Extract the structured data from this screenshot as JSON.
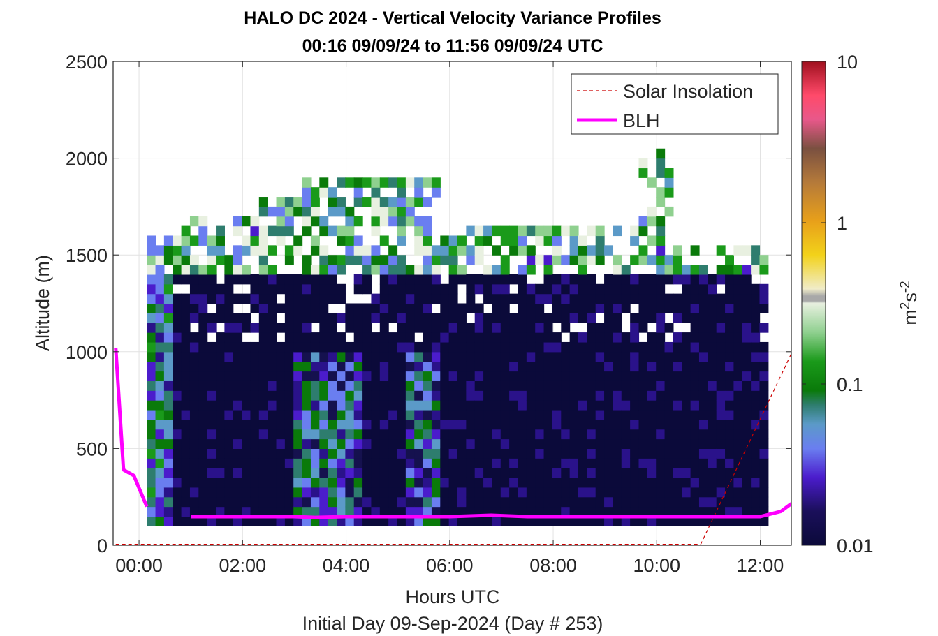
{
  "chart_data": {
    "type": "heatmap",
    "title": "HALO DC 2024 - Vertical Velocity Variance Profiles",
    "subtitle": "00:16 09/09/24 to 11:56 09/09/24  UTC",
    "xlabel": "Hours UTC",
    "xlabel2": "Initial Day 09-Sep-2024 (Day # 253)",
    "ylabel": "Altitude (m)",
    "colorbar_label_base": "m",
    "colorbar_label_sup1": "2",
    "colorbar_label_mid": "s",
    "colorbar_label_sup2": "-2",
    "xlim": [
      -0.5,
      12.6
    ],
    "ylim": [
      0,
      2500
    ],
    "x_ticks": [
      0,
      2,
      4,
      6,
      8,
      10,
      12
    ],
    "x_tick_labels": [
      "00:00",
      "02:00",
      "04:00",
      "06:00",
      "08:00",
      "10:00",
      "12:00"
    ],
    "y_ticks": [
      0,
      500,
      1000,
      1500,
      2000,
      2500
    ],
    "y_tick_labels": [
      "0",
      "500",
      "1000",
      "1500",
      "2000",
      "2500"
    ],
    "color_scale": "log",
    "clim": [
      0.01,
      10
    ],
    "colorbar_ticks": [
      0.01,
      0.1,
      1,
      10
    ],
    "colorbar_tick_labels": [
      "0.01",
      "0.1",
      "1",
      "10"
    ],
    "grid": true,
    "legend_position": "top-right",
    "legend": [
      {
        "label": "Solar Insolation",
        "color": "#cc0000",
        "style": "dashed"
      },
      {
        "label": "BLH",
        "color": "#ff00ff",
        "style": "solid"
      }
    ],
    "blh": {
      "x": [
        -0.45,
        -0.3,
        -0.1,
        0.15,
        0.5,
        1.0,
        2.0,
        3.0,
        3.4,
        4.0,
        5.0,
        6.0,
        6.8,
        7.5,
        8.0,
        9.0,
        10.0,
        11.0,
        12.0,
        12.4,
        12.6
      ],
      "y": [
        1020,
        390,
        360,
        200,
        null,
        148,
        148,
        148,
        144,
        148,
        148,
        148,
        155,
        148,
        148,
        148,
        148,
        148,
        148,
        175,
        215
      ]
    },
    "solar": {
      "x": [
        -0.45,
        10.85,
        12.6
      ],
      "y": [
        5,
        5,
        990
      ]
    },
    "heatmap_columns": [
      {
        "x": 0.0,
        "heights": [
          120,
          1600
        ],
        "dominant": 0.02
      },
      {
        "x": 0.5,
        "heights": [
          120,
          1600
        ],
        "dominant": 0.03
      },
      {
        "x": 1.0,
        "heights": [
          120,
          1650
        ],
        "dominant": 0.01
      },
      {
        "x": 2.0,
        "heights": [
          120,
          1750
        ],
        "dominant": 0.01
      },
      {
        "x": 3.0,
        "heights": [
          120,
          1900
        ],
        "dominant": 0.03
      },
      {
        "x": 4.0,
        "heights": [
          120,
          1950
        ],
        "dominant": 0.03
      },
      {
        "x": 5.0,
        "heights": [
          120,
          1950
        ],
        "dominant": 0.03
      },
      {
        "x": 6.0,
        "heights": [
          120,
          1650
        ],
        "dominant": 0.01
      },
      {
        "x": 7.0,
        "heights": [
          120,
          1650
        ],
        "dominant": 0.01
      },
      {
        "x": 8.0,
        "heights": [
          120,
          1600
        ],
        "dominant": 0.01
      },
      {
        "x": 9.0,
        "heights": [
          120,
          1600
        ],
        "dominant": 0.01
      },
      {
        "x": 10.0,
        "heights": [
          120,
          2050
        ],
        "dominant": 0.01
      },
      {
        "x": 11.0,
        "heights": [
          120,
          1600
        ],
        "dominant": 0.01
      },
      {
        "x": 12.0,
        "heights": [
          120,
          1550
        ],
        "dominant": 0.01
      }
    ]
  }
}
